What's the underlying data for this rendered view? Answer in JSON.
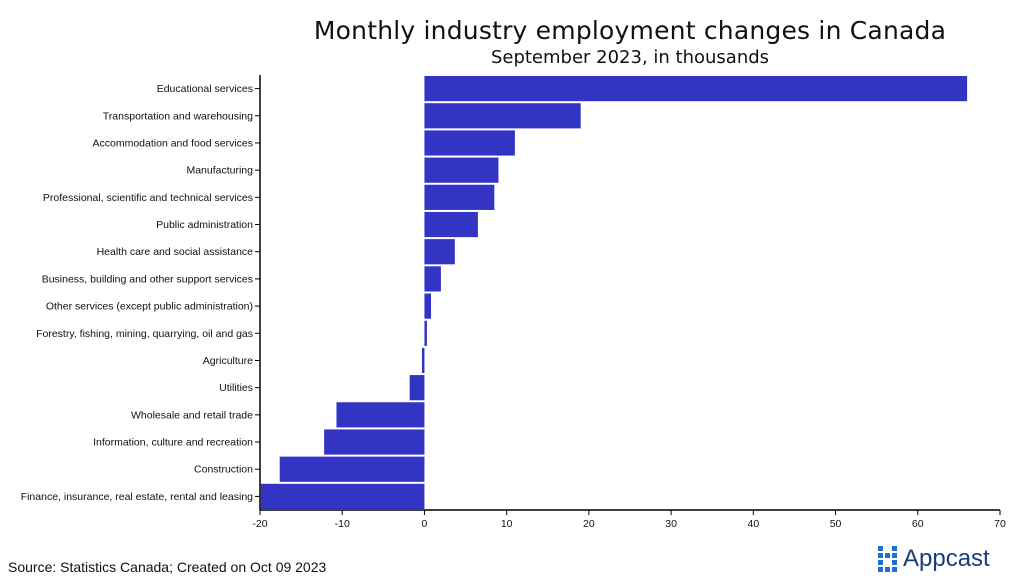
{
  "chart_data": {
    "type": "bar",
    "orientation": "horizontal",
    "title": "Monthly industry employment changes in Canada",
    "subtitle": "September 2023, in thousands",
    "categories": [
      "Educational services",
      "Transportation and warehousing",
      "Accommodation and food services",
      "Manufacturing",
      "Professional, scientific and technical services",
      "Public administration",
      "Health care and social assistance",
      "Business, building and other support services",
      "Other services (except public administration)",
      "Forestry, fishing, mining, quarrying, oil and gas",
      "Agriculture",
      "Utilities",
      "Wholesale and retail trade",
      "Information, culture and recreation",
      "Construction",
      "Finance, insurance, real estate, rental and leasing"
    ],
    "values": [
      66,
      19,
      11,
      9,
      8.5,
      6.5,
      3.7,
      2,
      0.8,
      0.3,
      -0.3,
      -1.8,
      -10.7,
      -12.2,
      -17.6,
      -19.9
    ],
    "xlim": [
      -20,
      70
    ],
    "xticks": [
      -20,
      -10,
      0,
      10,
      20,
      30,
      40,
      50,
      60,
      70
    ],
    "xlabel": "",
    "ylabel": "",
    "grid": false,
    "bar_color": "#3333c4"
  },
  "footer": {
    "source": "Source: Statistics Canada; Created on Oct 09 2023"
  },
  "logo": {
    "name": "Appcast",
    "icon": "dot-grid-icon",
    "color": "#1f6fd6"
  }
}
